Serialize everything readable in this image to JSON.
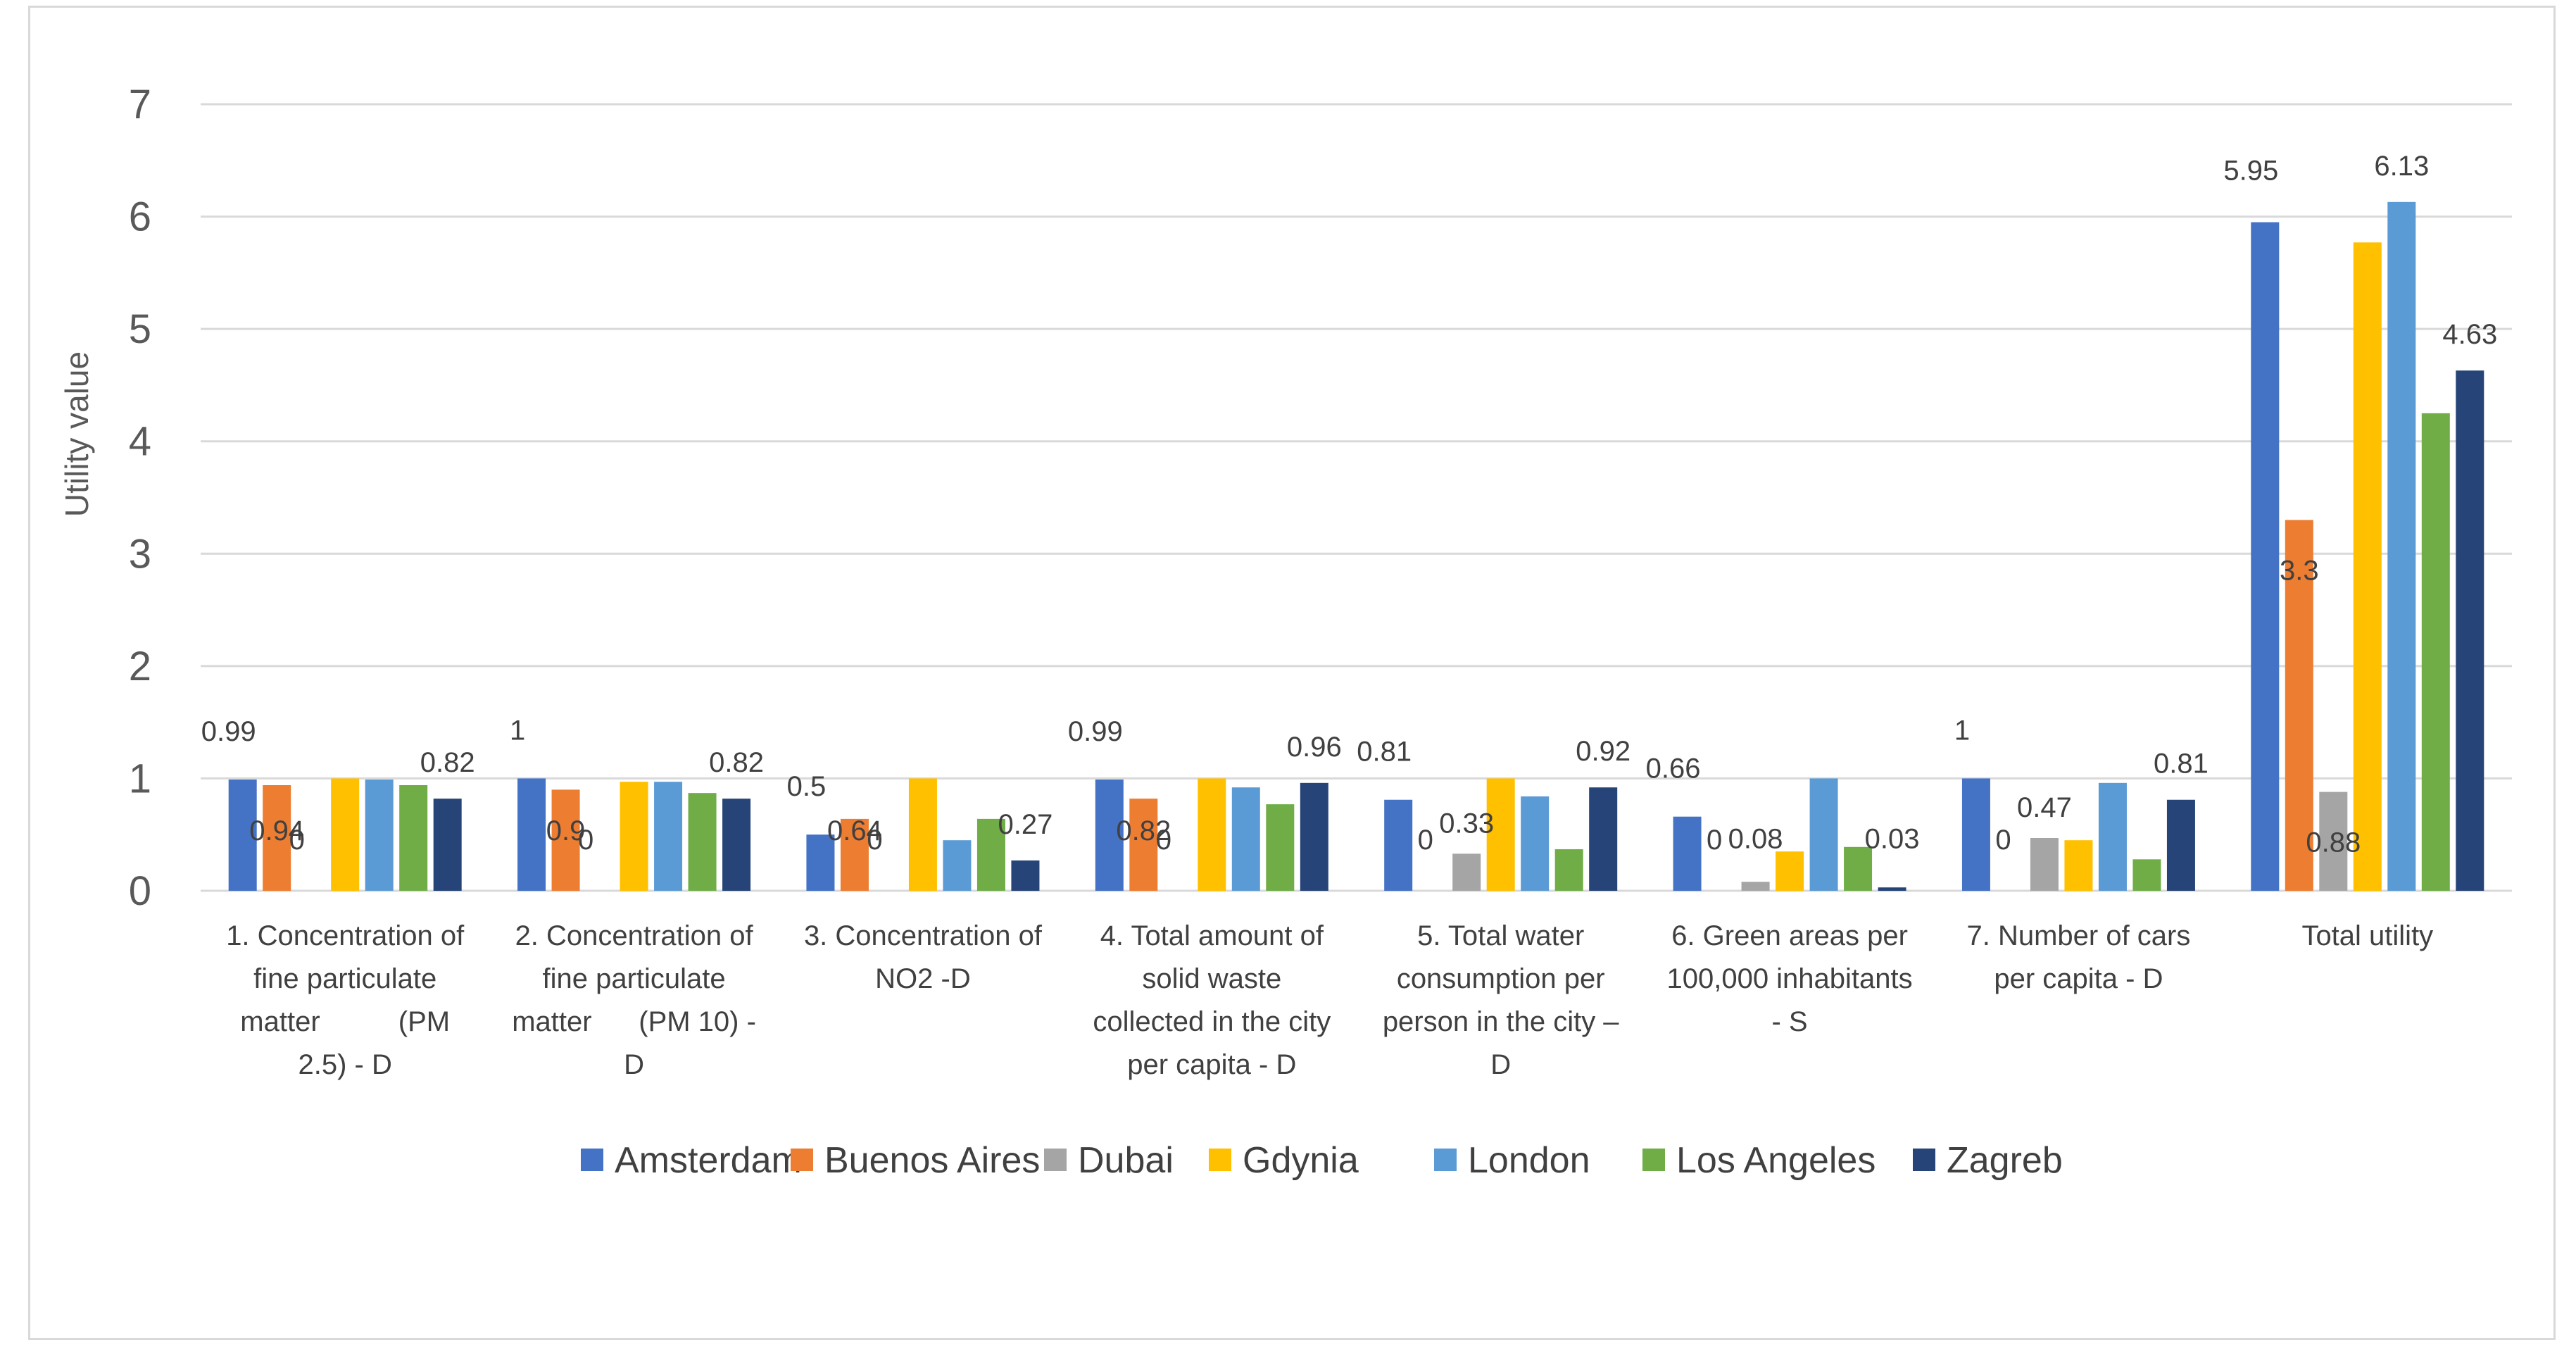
{
  "chart_data": {
    "type": "bar",
    "title": "",
    "xlabel": "",
    "ylabel": "Utility value",
    "ylim": [
      0,
      7
    ],
    "yticks": [
      "0",
      "1",
      "2",
      "3",
      "4",
      "5",
      "6",
      "7"
    ],
    "grid": true,
    "legend_position": "bottom",
    "categories": [
      [
        "1. Concentration of",
        "fine particulate",
        "matter          (PM",
        "2.5) - D"
      ],
      [
        "2. Concentration of",
        "fine particulate",
        "matter      (PM 10) -",
        "D"
      ],
      [
        "3. Concentration of",
        "NO2 -D"
      ],
      [
        "4. Total amount of",
        "solid waste",
        "collected in the city",
        "per capita - D"
      ],
      [
        "5. Total water",
        "consumption per",
        "person in the city –",
        "D"
      ],
      [
        "6. Green areas per",
        "100,000 inhabitants",
        "- S"
      ],
      [
        "7. Number of cars",
        "per capita - D"
      ],
      [
        "Total utility"
      ]
    ],
    "series": [
      {
        "name": "Amsterdam",
        "color": "#4472C4",
        "values": [
          0.99,
          1.0,
          0.5,
          0.99,
          0.81,
          0.66,
          1.0,
          5.95
        ]
      },
      {
        "name": "Buenos Aires",
        "color": "#ED7D31",
        "values": [
          0.94,
          0.9,
          0.64,
          0.82,
          0,
          0,
          0,
          3.3
        ]
      },
      {
        "name": "Dubai",
        "color": "#A5A5A5",
        "values": [
          0,
          0,
          0,
          0,
          0.33,
          0.08,
          0.47,
          0.88
        ]
      },
      {
        "name": "Gdynia",
        "color": "#FFC000",
        "values": [
          1.0,
          0.97,
          1.0,
          1.0,
          1.0,
          0.35,
          0.45,
          5.77
        ]
      },
      {
        "name": "London",
        "color": "#5B9BD5",
        "values": [
          0.99,
          0.97,
          0.45,
          0.92,
          0.84,
          1.0,
          0.96,
          6.13
        ]
      },
      {
        "name": "Los Angeles",
        "color": "#70AD47",
        "values": [
          0.94,
          0.87,
          0.64,
          0.77,
          0.37,
          0.39,
          0.28,
          4.25
        ]
      },
      {
        "name": "Zagreb",
        "color": "#264478",
        "values": [
          0.82,
          0.82,
          0.27,
          0.96,
          0.92,
          0.03,
          0.81,
          4.63
        ]
      }
    ],
    "data_labels": [
      {
        "text": "0.99",
        "category": 0,
        "series": 0,
        "value": 0.99
      },
      {
        "text": "0.94",
        "category": 0,
        "series": 1,
        "value": 0.94
      },
      {
        "text": "0",
        "category": 0,
        "series": 2,
        "value": 0
      },
      {
        "text": "0.82",
        "category": 0,
        "series": 6,
        "value": 0.82
      },
      {
        "text": "1",
        "category": 1,
        "series": 0,
        "value": 1.0
      },
      {
        "text": "0.9",
        "category": 1,
        "series": 1,
        "value": 0.9
      },
      {
        "text": "0",
        "category": 1,
        "series": 2,
        "value": 0
      },
      {
        "text": "0.82",
        "category": 1,
        "series": 6,
        "value": 0.82
      },
      {
        "text": "0.5",
        "category": 2,
        "series": 0,
        "value": 0.5
      },
      {
        "text": "0.64",
        "category": 2,
        "series": 1,
        "value": 0.64
      },
      {
        "text": "0",
        "category": 2,
        "series": 2,
        "value": 0
      },
      {
        "text": "0.27",
        "category": 2,
        "series": 6,
        "value": 0.27
      },
      {
        "text": "0.99",
        "category": 3,
        "series": 0,
        "value": 0.99
      },
      {
        "text": "0.82",
        "category": 3,
        "series": 1,
        "value": 0.82
      },
      {
        "text": "0",
        "category": 3,
        "series": 2,
        "value": 0
      },
      {
        "text": "0.96",
        "category": 3,
        "series": 6,
        "value": 0.96
      },
      {
        "text": "0.81",
        "category": 4,
        "series": 0,
        "value": 0.81
      },
      {
        "text": "0",
        "category": 4,
        "series": 1,
        "value": 0
      },
      {
        "text": "0.33",
        "category": 4,
        "series": 2,
        "value": 0.33
      },
      {
        "text": "0.92",
        "category": 4,
        "series": 6,
        "value": 0.92
      },
      {
        "text": "0.66",
        "category": 5,
        "series": 0,
        "value": 0.66
      },
      {
        "text": "0",
        "category": 5,
        "series": 1,
        "value": 0
      },
      {
        "text": "0.08",
        "category": 5,
        "series": 2,
        "value": 0.08
      },
      {
        "text": "0.03",
        "category": 5,
        "series": 6,
        "value": 0.03
      },
      {
        "text": "1",
        "category": 6,
        "series": 0,
        "value": 1.0
      },
      {
        "text": "0",
        "category": 6,
        "series": 1,
        "value": 0
      },
      {
        "text": "0.47",
        "category": 6,
        "series": 2,
        "value": 0.47
      },
      {
        "text": "0.81",
        "category": 6,
        "series": 6,
        "value": 0.81
      },
      {
        "text": "5.95",
        "category": 7,
        "series": 0,
        "value": 5.95
      },
      {
        "text": "3.3",
        "category": 7,
        "series": 1,
        "value": 3.3
      },
      {
        "text": "0.88",
        "category": 7,
        "series": 2,
        "value": 0.88
      },
      {
        "text": "6.13",
        "category": 7,
        "series": 4,
        "value": 6.13
      },
      {
        "text": "4.63",
        "category": 7,
        "series": 6,
        "value": 4.63
      }
    ]
  }
}
